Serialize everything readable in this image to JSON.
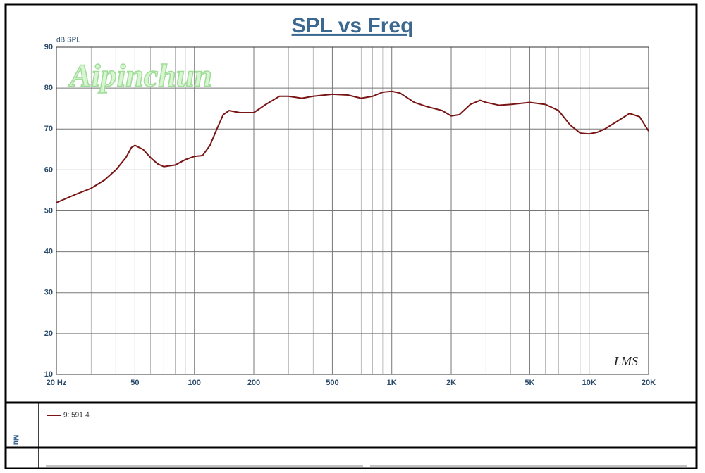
{
  "chart_data": {
    "type": "line",
    "title": "SPL vs Freq",
    "y_label": "dB SPL",
    "watermark": "Aipinchun",
    "logo": "LMS",
    "side_label": "Mu",
    "x_log": true,
    "grid": true,
    "x": [
      20,
      25,
      30,
      35,
      40,
      45,
      48,
      50,
      55,
      60,
      65,
      70,
      80,
      90,
      100,
      110,
      120,
      130,
      140,
      150,
      170,
      200,
      230,
      270,
      300,
      350,
      400,
      500,
      600,
      700,
      800,
      900,
      1000,
      1100,
      1300,
      1500,
      1800,
      2000,
      2200,
      2500,
      2800,
      3000,
      3500,
      4000,
      5000,
      6000,
      7000,
      8000,
      9000,
      10000,
      11000,
      12000,
      14000,
      16000,
      18000,
      20000
    ],
    "series": [
      {
        "name": "9: 591-4",
        "color": "#7a1414",
        "values": [
          52,
          54,
          55.5,
          57.5,
          60,
          63,
          65.5,
          66,
          65,
          63,
          61.5,
          60.8,
          61.2,
          62.5,
          63.3,
          63.5,
          66,
          70,
          73.5,
          74.5,
          74,
          74,
          76,
          78,
          78,
          77.5,
          78,
          78.5,
          78.3,
          77.5,
          78,
          79,
          79.2,
          78.8,
          76.5,
          75.5,
          74.5,
          73.2,
          73.5,
          76,
          77,
          76.5,
          75.8,
          76,
          76.5,
          76,
          74.5,
          71,
          69,
          68.8,
          69.2,
          70,
          72,
          73.8,
          73,
          69.5
        ]
      }
    ],
    "xlim": [
      20,
      20000
    ],
    "xticks": [
      {
        "value": 20,
        "label": "20  Hz"
      },
      50,
      100,
      200,
      500,
      {
        "value": 1000,
        "label": "1K"
      },
      {
        "value": 2000,
        "label": "2K"
      },
      {
        "value": 5000,
        "label": "5K"
      },
      {
        "value": 10000,
        "label": "10K"
      },
      {
        "value": 20000,
        "label": "20K"
      }
    ],
    "x_minor_ticks": [
      30,
      40,
      60,
      70,
      80,
      90,
      300,
      400,
      600,
      700,
      800,
      900,
      3000,
      4000,
      6000,
      7000,
      8000,
      9000
    ],
    "ylim": [
      10,
      90
    ],
    "yticks": [
      10,
      20,
      30,
      40,
      50,
      60,
      70,
      80,
      90
    ]
  }
}
